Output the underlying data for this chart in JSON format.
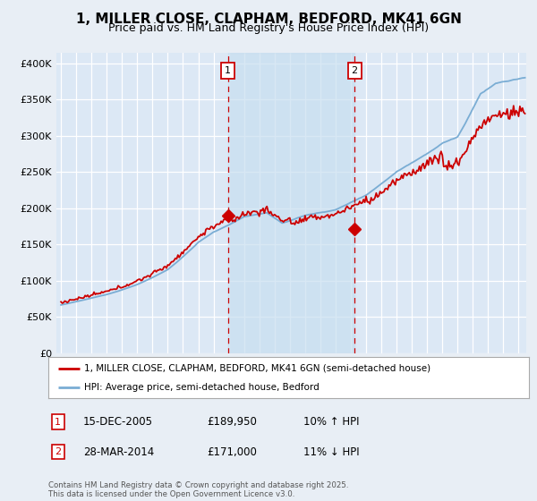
{
  "title": "1, MILLER CLOSE, CLAPHAM, BEDFORD, MK41 6GN",
  "subtitle": "Price paid vs. HM Land Registry's House Price Index (HPI)",
  "ytick_values": [
    0,
    50000,
    100000,
    150000,
    200000,
    250000,
    300000,
    350000,
    400000
  ],
  "ylim": [
    0,
    415000
  ],
  "xlim_start": 1994.7,
  "xlim_end": 2025.5,
  "property_color": "#cc0000",
  "hpi_color": "#7aadd4",
  "shade_color": "#c8dff0",
  "marker1_year": 2005.95,
  "marker2_year": 2014.24,
  "marker1_value": 189950,
  "marker2_value": 171000,
  "legend_property": "1, MILLER CLOSE, CLAPHAM, BEDFORD, MK41 6GN (semi-detached house)",
  "legend_hpi": "HPI: Average price, semi-detached house, Bedford",
  "table_rows": [
    {
      "num": "1",
      "date": "15-DEC-2005",
      "price": "£189,950",
      "hpi": "10% ↑ HPI"
    },
    {
      "num": "2",
      "date": "28-MAR-2014",
      "price": "£171,000",
      "hpi": "11% ↓ HPI"
    }
  ],
  "footer": "Contains HM Land Registry data © Crown copyright and database right 2025.\nThis data is licensed under the Open Government Licence v3.0.",
  "background_color": "#e8eef5",
  "plot_bg_color": "#dce8f5",
  "grid_color": "#ffffff",
  "title_fontsize": 11,
  "subtitle_fontsize": 9,
  "tick_fontsize": 8
}
